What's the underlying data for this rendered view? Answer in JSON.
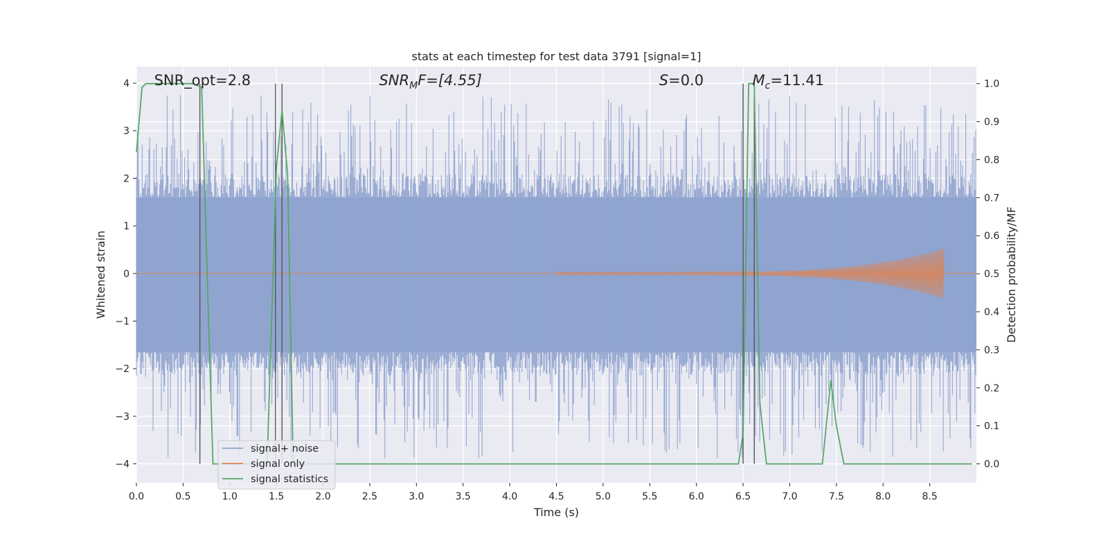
{
  "chart_data": {
    "type": "line",
    "title": "stats at each timestep for test data 3791 [signal=1]",
    "xlabel": "Time (s)",
    "ylabel_left": "Whitened strain",
    "ylabel_right": "Detection probability/MF",
    "xlim": [
      0.0,
      9.0
    ],
    "ylim_left": [
      -4.4,
      4.35
    ],
    "ylim_right": [
      -0.05,
      1.045
    ],
    "x_ticks": [
      0.0,
      0.5,
      1.0,
      1.5,
      2.0,
      2.5,
      3.0,
      3.5,
      4.0,
      4.5,
      5.0,
      5.5,
      6.0,
      6.5,
      7.0,
      7.5,
      8.0,
      8.5
    ],
    "x_tick_labels": [
      "0.0",
      "0.5",
      "1.0",
      "1.5",
      "2.0",
      "2.5",
      "3.0",
      "3.5",
      "4.0",
      "4.5",
      "5.0",
      "5.5",
      "6.0",
      "6.5",
      "7.0",
      "7.5",
      "8.0",
      "8.5"
    ],
    "y_left_ticks": [
      4,
      3,
      2,
      1,
      0,
      -1,
      -2,
      -3,
      -4
    ],
    "y_left_tick_labels": [
      "4",
      "3",
      "2",
      "1",
      "0",
      "−1",
      "−2",
      "−3",
      "−4"
    ],
    "y_right_ticks": [
      1.0,
      0.9,
      0.8,
      0.7,
      0.6,
      0.5,
      0.4,
      0.3,
      0.2,
      0.1,
      0.0
    ],
    "y_right_tick_labels": [
      "1.0",
      "0.9",
      "0.8",
      "0.7",
      "0.6",
      "0.5",
      "0.4",
      "0.3",
      "0.2",
      "0.1",
      "0.0"
    ],
    "grid": true,
    "legend_placement": "lower-left",
    "annotations": {
      "snr_opt": "SNR_opt=2.8",
      "snr_mf_main": "SNR",
      "snr_mf_sub": "M",
      "snr_mf_tail": "F=[4.55]",
      "s_main": "S",
      "s_tail": "=0.0",
      "mc_main": "M",
      "mc_sub": "c",
      "mc_tail": "=11.41"
    },
    "series": [
      {
        "name": "signal+ noise",
        "color": "#8fa3cf",
        "axis": "left",
        "description_stats": {
          "envelope_upper": 1.6,
          "envelope_lower": -1.65,
          "peak_max": 3.75,
          "peak_min": -3.9
        }
      },
      {
        "name": "signal only",
        "color": "#dd8452",
        "axis": "left",
        "chirp": {
          "start": 4.5,
          "end": 8.65,
          "max_amplitude": 0.5
        }
      },
      {
        "name": "signal statistics",
        "color": "#55a868",
        "axis": "right",
        "x": [
          0.0,
          0.06,
          0.1,
          0.2,
          0.3,
          0.4,
          0.5,
          0.6,
          0.7,
          0.77,
          0.82,
          1.0,
          1.2,
          1.4,
          1.5,
          1.56,
          1.62,
          1.68,
          2.0,
          3.0,
          4.0,
          5.0,
          6.0,
          6.35,
          6.45,
          6.5,
          6.56,
          6.62,
          6.68,
          6.75,
          7.0,
          7.35,
          7.44,
          7.5,
          7.58,
          8.0,
          8.5,
          8.95
        ],
        "y": [
          0.82,
          0.99,
          1.0,
          1.0,
          1.0,
          1.0,
          1.0,
          1.0,
          0.99,
          0.4,
          0.0,
          0.0,
          0.0,
          0.0,
          0.78,
          0.93,
          0.76,
          0.0,
          0.0,
          0.0,
          0.0,
          0.0,
          0.0,
          0.0,
          0.0,
          0.08,
          1.0,
          1.0,
          0.16,
          0.0,
          0.0,
          0.0,
          0.22,
          0.1,
          0.0,
          0.0,
          0.0,
          0.0
        ]
      }
    ],
    "vertical_markers_x": [
      0.68,
      1.49,
      1.56,
      6.5,
      6.62
    ],
    "vertical_markers_color": "#555555",
    "background_color": "#eaeaf2",
    "grid_color": "#ffffff"
  }
}
